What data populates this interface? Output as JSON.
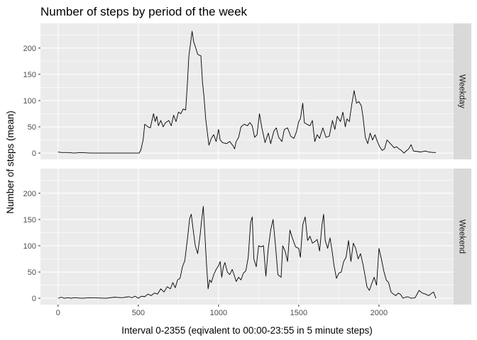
{
  "chart_data": {
    "type": "line",
    "title": "Number of steps by period of the week",
    "xlabel": "Interval 0-2355 (eqivalent to 00:00-23:55 in 5 minute steps)",
    "ylabel": "Number of steps (mean)",
    "xlim": [
      -110,
      2465
    ],
    "ylim": [
      -12,
      247
    ],
    "x_ticks": [
      0,
      500,
      1000,
      1500,
      2000
    ],
    "y_ticks": [
      0,
      50,
      100,
      150,
      200
    ],
    "grid": true,
    "facet_labels": [
      "Weekday",
      "Weekend"
    ],
    "line_color": "#000000",
    "panel_background": "#ebebeb",
    "strip_background": "#d9d9d9",
    "panels": [
      {
        "label": "Weekday",
        "points": [
          [
            0,
            2
          ],
          [
            20,
            1
          ],
          [
            60,
            1
          ],
          [
            100,
            0
          ],
          [
            140,
            1
          ],
          [
            200,
            0
          ],
          [
            300,
            0
          ],
          [
            400,
            0
          ],
          [
            480,
            0
          ],
          [
            505,
            0
          ],
          [
            515,
            5
          ],
          [
            530,
            25
          ],
          [
            540,
            55
          ],
          [
            560,
            50
          ],
          [
            575,
            48
          ],
          [
            585,
            62
          ],
          [
            595,
            75
          ],
          [
            605,
            60
          ],
          [
            615,
            70
          ],
          [
            625,
            52
          ],
          [
            640,
            62
          ],
          [
            655,
            50
          ],
          [
            670,
            58
          ],
          [
            690,
            62
          ],
          [
            705,
            52
          ],
          [
            720,
            72
          ],
          [
            735,
            60
          ],
          [
            750,
            78
          ],
          [
            765,
            75
          ],
          [
            780,
            84
          ],
          [
            795,
            82
          ],
          [
            805,
            128
          ],
          [
            815,
            185
          ],
          [
            825,
            208
          ],
          [
            835,
            232
          ],
          [
            845,
            212
          ],
          [
            855,
            203
          ],
          [
            870,
            188
          ],
          [
            890,
            185
          ],
          [
            900,
            135
          ],
          [
            910,
            105
          ],
          [
            920,
            65
          ],
          [
            930,
            40
          ],
          [
            940,
            15
          ],
          [
            955,
            28
          ],
          [
            970,
            35
          ],
          [
            985,
            22
          ],
          [
            1000,
            45
          ],
          [
            1010,
            25
          ],
          [
            1025,
            20
          ],
          [
            1050,
            18
          ],
          [
            1070,
            22
          ],
          [
            1090,
            14
          ],
          [
            1100,
            8
          ],
          [
            1110,
            22
          ],
          [
            1125,
            30
          ],
          [
            1140,
            50
          ],
          [
            1160,
            55
          ],
          [
            1180,
            52
          ],
          [
            1195,
            58
          ],
          [
            1210,
            52
          ],
          [
            1225,
            30
          ],
          [
            1240,
            35
          ],
          [
            1255,
            75
          ],
          [
            1270,
            48
          ],
          [
            1290,
            20
          ],
          [
            1310,
            38
          ],
          [
            1325,
            18
          ],
          [
            1345,
            42
          ],
          [
            1360,
            48
          ],
          [
            1375,
            30
          ],
          [
            1395,
            22
          ],
          [
            1410,
            45
          ],
          [
            1430,
            48
          ],
          [
            1450,
            32
          ],
          [
            1470,
            28
          ],
          [
            1485,
            40
          ],
          [
            1500,
            60
          ],
          [
            1510,
            65
          ],
          [
            1525,
            95
          ],
          [
            1535,
            58
          ],
          [
            1550,
            55
          ],
          [
            1570,
            52
          ],
          [
            1585,
            62
          ],
          [
            1600,
            22
          ],
          [
            1615,
            35
          ],
          [
            1630,
            28
          ],
          [
            1650,
            48
          ],
          [
            1670,
            30
          ],
          [
            1690,
            32
          ],
          [
            1710,
            62
          ],
          [
            1725,
            45
          ],
          [
            1740,
            70
          ],
          [
            1760,
            60
          ],
          [
            1775,
            78
          ],
          [
            1790,
            50
          ],
          [
            1800,
            65
          ],
          [
            1815,
            60
          ],
          [
            1830,
            92
          ],
          [
            1845,
            119
          ],
          [
            1860,
            95
          ],
          [
            1875,
            98
          ],
          [
            1890,
            90
          ],
          [
            1900,
            70
          ],
          [
            1915,
            30
          ],
          [
            1930,
            18
          ],
          [
            1945,
            38
          ],
          [
            1960,
            25
          ],
          [
            1975,
            35
          ],
          [
            1990,
            22
          ],
          [
            2005,
            12
          ],
          [
            2020,
            5
          ],
          [
            2035,
            8
          ],
          [
            2050,
            25
          ],
          [
            2065,
            20
          ],
          [
            2080,
            15
          ],
          [
            2095,
            10
          ],
          [
            2110,
            12
          ],
          [
            2125,
            8
          ],
          [
            2140,
            5
          ],
          [
            2155,
            0
          ],
          [
            2170,
            4
          ],
          [
            2185,
            8
          ],
          [
            2200,
            16
          ],
          [
            2215,
            4
          ],
          [
            2240,
            3
          ],
          [
            2260,
            2
          ],
          [
            2290,
            4
          ],
          [
            2310,
            2
          ],
          [
            2340,
            1
          ],
          [
            2355,
            1
          ]
        ]
      },
      {
        "label": "Weekend",
        "points": [
          [
            0,
            0
          ],
          [
            20,
            2
          ],
          [
            40,
            0
          ],
          [
            60,
            1
          ],
          [
            80,
            0
          ],
          [
            100,
            1
          ],
          [
            150,
            0
          ],
          [
            200,
            1
          ],
          [
            300,
            0
          ],
          [
            350,
            2
          ],
          [
            400,
            1
          ],
          [
            440,
            3
          ],
          [
            460,
            1
          ],
          [
            480,
            4
          ],
          [
            500,
            0
          ],
          [
            520,
            4
          ],
          [
            540,
            3
          ],
          [
            560,
            8
          ],
          [
            580,
            5
          ],
          [
            600,
            10
          ],
          [
            620,
            8
          ],
          [
            640,
            18
          ],
          [
            660,
            12
          ],
          [
            680,
            22
          ],
          [
            700,
            18
          ],
          [
            715,
            30
          ],
          [
            730,
            20
          ],
          [
            745,
            35
          ],
          [
            760,
            38
          ],
          [
            775,
            60
          ],
          [
            790,
            72
          ],
          [
            805,
            110
          ],
          [
            820,
            152
          ],
          [
            830,
            160
          ],
          [
            840,
            135
          ],
          [
            855,
            100
          ],
          [
            870,
            85
          ],
          [
            885,
            120
          ],
          [
            895,
            150
          ],
          [
            905,
            175
          ],
          [
            915,
            120
          ],
          [
            925,
            65
          ],
          [
            935,
            18
          ],
          [
            945,
            35
          ],
          [
            955,
            30
          ],
          [
            970,
            45
          ],
          [
            985,
            55
          ],
          [
            1000,
            62
          ],
          [
            1010,
            70
          ],
          [
            1020,
            40
          ],
          [
            1030,
            60
          ],
          [
            1040,
            68
          ],
          [
            1055,
            50
          ],
          [
            1070,
            45
          ],
          [
            1085,
            55
          ],
          [
            1100,
            42
          ],
          [
            1110,
            32
          ],
          [
            1125,
            40
          ],
          [
            1140,
            35
          ],
          [
            1155,
            48
          ],
          [
            1170,
            52
          ],
          [
            1185,
            78
          ],
          [
            1200,
            145
          ],
          [
            1210,
            155
          ],
          [
            1220,
            75
          ],
          [
            1235,
            60
          ],
          [
            1250,
            100
          ],
          [
            1265,
            98
          ],
          [
            1280,
            100
          ],
          [
            1295,
            42
          ],
          [
            1310,
            95
          ],
          [
            1325,
            130
          ],
          [
            1340,
            150
          ],
          [
            1355,
            100
          ],
          [
            1370,
            45
          ],
          [
            1390,
            40
          ],
          [
            1400,
            100
          ],
          [
            1415,
            90
          ],
          [
            1430,
            70
          ],
          [
            1445,
            130
          ],
          [
            1460,
            115
          ],
          [
            1480,
            98
          ],
          [
            1500,
            95
          ],
          [
            1510,
            78
          ],
          [
            1525,
            140
          ],
          [
            1540,
            155
          ],
          [
            1555,
            110
          ],
          [
            1570,
            118
          ],
          [
            1585,
            105
          ],
          [
            1600,
            108
          ],
          [
            1615,
            112
          ],
          [
            1630,
            90
          ],
          [
            1645,
            140
          ],
          [
            1655,
            160
          ],
          [
            1665,
            110
          ],
          [
            1680,
            95
          ],
          [
            1695,
            115
          ],
          [
            1710,
            85
          ],
          [
            1720,
            62
          ],
          [
            1735,
            38
          ],
          [
            1750,
            48
          ],
          [
            1765,
            50
          ],
          [
            1780,
            70
          ],
          [
            1795,
            78
          ],
          [
            1810,
            110
          ],
          [
            1825,
            70
          ],
          [
            1840,
            105
          ],
          [
            1855,
            95
          ],
          [
            1870,
            75
          ],
          [
            1885,
            85
          ],
          [
            1900,
            65
          ],
          [
            1915,
            40
          ],
          [
            1925,
            22
          ],
          [
            1940,
            15
          ],
          [
            1955,
            28
          ],
          [
            1970,
            40
          ],
          [
            1985,
            25
          ],
          [
            2000,
            95
          ],
          [
            2015,
            75
          ],
          [
            2030,
            52
          ],
          [
            2045,
            35
          ],
          [
            2060,
            30
          ],
          [
            2075,
            12
          ],
          [
            2090,
            8
          ],
          [
            2105,
            5
          ],
          [
            2120,
            10
          ],
          [
            2135,
            7
          ],
          [
            2150,
            0
          ],
          [
            2165,
            2
          ],
          [
            2180,
            3
          ],
          [
            2200,
            0
          ],
          [
            2225,
            1
          ],
          [
            2250,
            15
          ],
          [
            2270,
            10
          ],
          [
            2290,
            8
          ],
          [
            2310,
            5
          ],
          [
            2330,
            10
          ],
          [
            2340,
            12
          ],
          [
            2355,
            0
          ]
        ]
      }
    ]
  }
}
